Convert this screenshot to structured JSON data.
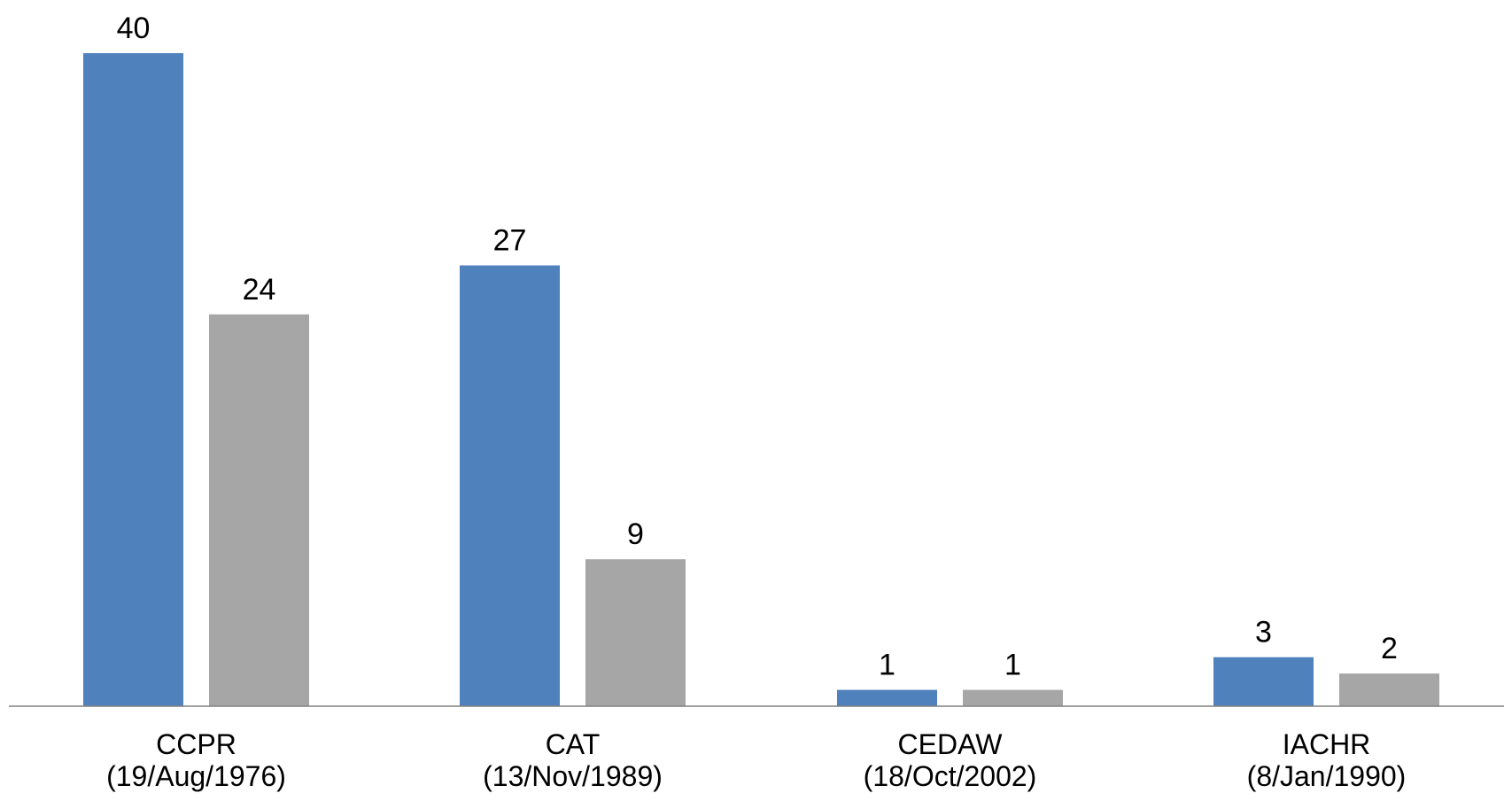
{
  "chart_data": {
    "type": "bar",
    "categories": [
      [
        "CCPR",
        "(19/Aug/1976)"
      ],
      [
        "CAT",
        "(13/Nov/1989)"
      ],
      [
        "CEDAW",
        "(18/Oct/2002)"
      ],
      [
        "IACHR",
        "(8/Jan/1990)"
      ]
    ],
    "series": [
      {
        "color": "#4F81BD",
        "values": [
          40,
          27,
          1,
          3
        ]
      },
      {
        "color": "#A6A6A6",
        "values": [
          24,
          9,
          1,
          2
        ]
      }
    ],
    "data_labels": true,
    "ylim": [
      0,
      40
    ],
    "grid": false,
    "legend": "none",
    "axis_color": "#808080"
  }
}
